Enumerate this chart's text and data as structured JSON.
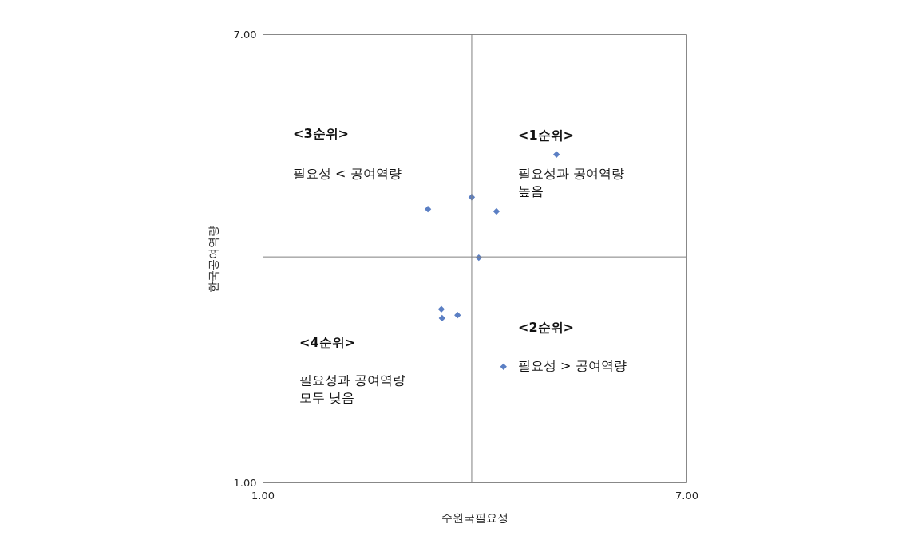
{
  "chart_data": {
    "type": "scatter",
    "xlabel": "수원국필요성",
    "ylabel": "한국공여역량",
    "x": [
      5.16,
      3.96,
      4.31,
      3.34,
      4.06,
      3.53,
      3.54,
      3.76,
      4.41
    ],
    "values": [
      5.39,
      4.82,
      4.63,
      4.66,
      4.01,
      3.32,
      3.2,
      3.24,
      2.55
    ],
    "color": "#5b7fc4",
    "marker": "diamond",
    "xlim": [
      1,
      7
    ],
    "ylim": [
      1,
      7
    ],
    "xticks": [
      {
        "value": 1,
        "label": "1.00"
      },
      {
        "value": 7,
        "label": "7.00"
      }
    ],
    "yticks": [
      {
        "value": 1,
        "label": "1.00"
      },
      {
        "value": 7,
        "label": "7.00"
      }
    ],
    "grid": false,
    "ref_lines": [
      {
        "axis": "x",
        "value": 3.96,
        "color": "#808080"
      },
      {
        "axis": "y",
        "value": 4.02,
        "color": "#808080"
      }
    ],
    "annotations": [
      "<3순위>",
      "필요성 < 공여역량",
      "<1순위>",
      "필요성과 공여역량\n높음",
      "<2순위>",
      "필요성 > 공여역량",
      "<4순위>",
      "필요성과 공여역량\n모두 낮음"
    ]
  }
}
